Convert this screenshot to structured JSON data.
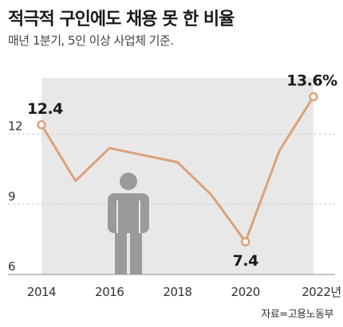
{
  "chart_data": {
    "type": "line",
    "title": "적극적 구인에도 채용 못 한 비율",
    "subtitle": "매년 1분기, 5인 이상 사업체 기준.",
    "source": "자료=고용노동부",
    "x": [
      2014,
      2015,
      2016,
      2017,
      2018,
      2019,
      2020,
      2021,
      2022
    ],
    "values": [
      12.4,
      10.0,
      11.4,
      11.1,
      10.8,
      9.4,
      7.4,
      11.3,
      13.6
    ],
    "x_tick_labels": [
      "2014",
      "2016",
      "2018",
      "2020",
      "2022년"
    ],
    "x_tick_values": [
      2014,
      2016,
      2018,
      2020,
      2022
    ],
    "y_tick_labels": [
      "12",
      "9",
      "6"
    ],
    "y_tick_values": [
      12,
      9,
      6
    ],
    "ylim": [
      6,
      14.4
    ],
    "data_labels": [
      {
        "x": 2014,
        "text": "12.4"
      },
      {
        "x": 2020,
        "text": "7.4"
      },
      {
        "x": 2022,
        "text": "13.6%"
      }
    ],
    "grid": true,
    "colors": {
      "line": "#dba27a",
      "area": "#e8e8e8",
      "grid": "#c8c8c8",
      "icon": "#9a9a9a"
    },
    "icon": "person-icon"
  }
}
